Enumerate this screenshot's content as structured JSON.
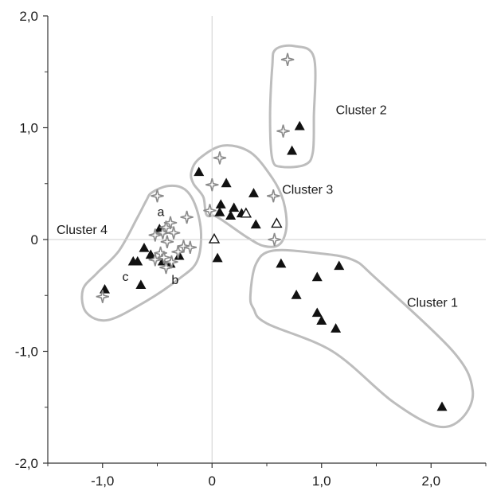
{
  "chart_data": {
    "type": "scatter",
    "xlim": [
      -1.5,
      2.5
    ],
    "ylim": [
      -2.0,
      2.0
    ],
    "x_ticks": [
      {
        "value": -1.0,
        "label": "-1,0"
      },
      {
        "value": 0,
        "label": "0"
      },
      {
        "value": 1.0,
        "label": "1,0"
      },
      {
        "value": 2.0,
        "label": "2,0"
      }
    ],
    "y_ticks": [
      {
        "value": 2.0,
        "label": "2,0"
      },
      {
        "value": 1.0,
        "label": "1,0"
      },
      {
        "value": 0,
        "label": "0"
      },
      {
        "value": -1.0,
        "label": "-1,0"
      },
      {
        "value": -2.0,
        "label": "-2,0"
      }
    ],
    "reference_lines": {
      "x": 0,
      "y": 0
    },
    "grid": false,
    "colors": {
      "filled_triangle": "#111111",
      "open_triangle": "#111111",
      "star": "#8a8a8a",
      "cluster_outline": "#bdbdbd",
      "reference_line": "#cfcfcf",
      "axis": "#333333"
    },
    "series": [
      {
        "marker": "filled-triangle",
        "points": [
          [
            -0.98,
            -0.45
          ],
          [
            -0.72,
            -0.2
          ],
          [
            -0.68,
            -0.2
          ],
          [
            -0.62,
            -0.08
          ],
          [
            -0.65,
            -0.41
          ],
          [
            -0.56,
            -0.14
          ],
          [
            -0.48,
            0.09
          ],
          [
            -0.45,
            -0.2
          ],
          [
            -0.38,
            -0.22
          ],
          [
            -0.3,
            -0.15
          ],
          [
            -0.12,
            0.6
          ],
          [
            0.05,
            -0.17
          ],
          [
            0.07,
            0.24
          ],
          [
            0.08,
            0.31
          ],
          [
            0.13,
            0.5
          ],
          [
            0.17,
            0.21
          ],
          [
            0.2,
            0.28
          ],
          [
            0.27,
            0.23
          ],
          [
            0.38,
            0.41
          ],
          [
            0.4,
            0.13
          ],
          [
            0.73,
            0.79
          ],
          [
            0.8,
            1.01
          ],
          [
            0.63,
            -0.22
          ],
          [
            0.77,
            -0.5
          ],
          [
            0.96,
            -0.34
          ],
          [
            0.96,
            -0.66
          ],
          [
            1.0,
            -0.73
          ],
          [
            1.13,
            -0.8
          ],
          [
            1.16,
            -0.24
          ],
          [
            2.1,
            -1.5
          ]
        ]
      },
      {
        "marker": "open-triangle",
        "points": [
          [
            0.02,
            0.0
          ],
          [
            0.31,
            0.23
          ],
          [
            0.59,
            0.14
          ]
        ]
      },
      {
        "marker": "star",
        "points": [
          [
            -1.0,
            -0.51
          ],
          [
            -0.5,
            0.39
          ],
          [
            -0.52,
            0.04
          ],
          [
            -0.45,
            0.06
          ],
          [
            -0.42,
            0.11
          ],
          [
            -0.38,
            0.15
          ],
          [
            -0.35,
            0.06
          ],
          [
            -0.41,
            -0.02
          ],
          [
            -0.47,
            -0.12
          ],
          [
            -0.52,
            -0.18
          ],
          [
            -0.44,
            -0.16
          ],
          [
            -0.42,
            -0.25
          ],
          [
            -0.37,
            -0.2
          ],
          [
            -0.31,
            -0.11
          ],
          [
            -0.26,
            -0.06
          ],
          [
            -0.2,
            -0.07
          ],
          [
            -0.23,
            0.2
          ],
          [
            0.0,
            0.49
          ],
          [
            0.07,
            0.73
          ],
          [
            -0.02,
            0.26
          ],
          [
            0.56,
            0.39
          ],
          [
            0.57,
            0.0
          ],
          [
            0.69,
            1.61
          ],
          [
            0.65,
            0.97
          ]
        ]
      }
    ],
    "clusters": [
      {
        "name": "Cluster 1",
        "label_at": [
          1.78,
          -0.6
        ],
        "outline": [
          [
            0.35,
            -0.5
          ],
          [
            0.4,
            -0.22
          ],
          [
            0.55,
            -0.1
          ],
          [
            0.95,
            -0.12
          ],
          [
            1.28,
            -0.18
          ],
          [
            1.5,
            -0.35
          ],
          [
            2.2,
            -1.0
          ],
          [
            2.38,
            -1.35
          ],
          [
            2.28,
            -1.6
          ],
          [
            2.05,
            -1.67
          ],
          [
            1.65,
            -1.45
          ],
          [
            1.1,
            -1.0
          ],
          [
            0.5,
            -0.75
          ],
          [
            0.38,
            -0.62
          ]
        ]
      },
      {
        "name": "Cluster 2",
        "label_at": [
          1.13,
          1.12
        ],
        "outline": [
          [
            0.55,
            1.55
          ],
          [
            0.58,
            1.7
          ],
          [
            0.75,
            1.73
          ],
          [
            0.93,
            1.63
          ],
          [
            0.93,
            1.1
          ],
          [
            0.92,
            0.78
          ],
          [
            0.85,
            0.67
          ],
          [
            0.64,
            0.65
          ],
          [
            0.55,
            0.72
          ],
          [
            0.53,
            1.1
          ]
        ]
      },
      {
        "name": "Cluster 3",
        "label_at": [
          0.64,
          0.41
        ],
        "outline": [
          [
            -0.19,
            0.6
          ],
          [
            -0.12,
            0.72
          ],
          [
            0.1,
            0.84
          ],
          [
            0.35,
            0.78
          ],
          [
            0.55,
            0.55
          ],
          [
            0.65,
            0.35
          ],
          [
            0.68,
            0.12
          ],
          [
            0.62,
            -0.04
          ],
          [
            0.48,
            -0.06
          ],
          [
            0.32,
            0.02
          ],
          [
            0.05,
            0.2
          ],
          [
            -0.05,
            0.22
          ],
          [
            -0.08,
            0.38
          ],
          [
            -0.17,
            0.5
          ]
        ]
      },
      {
        "name": "Cluster 4",
        "label_at": [
          -1.42,
          0.05
        ],
        "outline": [
          [
            -0.55,
            0.42
          ],
          [
            -0.4,
            0.48
          ],
          [
            -0.25,
            0.45
          ],
          [
            -0.15,
            0.3
          ],
          [
            -0.1,
            0.05
          ],
          [
            -0.14,
            -0.2
          ],
          [
            -0.3,
            -0.35
          ],
          [
            -0.6,
            -0.55
          ],
          [
            -0.95,
            -0.72
          ],
          [
            -1.15,
            -0.65
          ],
          [
            -1.18,
            -0.45
          ],
          [
            -1.05,
            -0.3
          ],
          [
            -0.85,
            -0.1
          ],
          [
            -0.68,
            0.2
          ],
          [
            -0.6,
            0.35
          ]
        ]
      }
    ],
    "annotations": [
      {
        "text": "a",
        "at": [
          -0.5,
          0.21
        ]
      },
      {
        "text": "b",
        "at": [
          -0.37,
          -0.4
        ]
      },
      {
        "text": "c",
        "at": [
          -0.82,
          -0.37
        ]
      }
    ]
  }
}
